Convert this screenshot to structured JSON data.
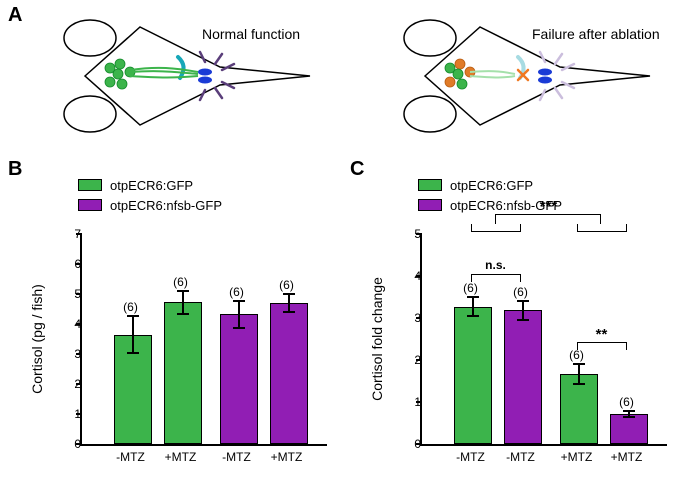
{
  "colors": {
    "green": "#3cb44b",
    "purple": "#911eb4",
    "axis": "#000000",
    "bg": "#ffffff"
  },
  "panelA": {
    "label": "A",
    "left_caption": "Normal function",
    "right_caption": "Failure after ablation"
  },
  "legend": {
    "item1": "otpECR6:GFP",
    "item2": "otpECR6:nfsb-GFP"
  },
  "panelB": {
    "label": "B",
    "ylabel": "Cortisol (pg / fish)",
    "ylim": [
      0,
      7
    ],
    "ytick_step": 1,
    "bars": [
      {
        "x": "-MTZ",
        "value": 3.65,
        "err": 0.62,
        "n": "(6)",
        "group": "green"
      },
      {
        "x": "+MTZ",
        "value": 4.72,
        "err": 0.38,
        "n": "(6)",
        "group": "green"
      },
      {
        "x": "-MTZ",
        "value": 4.33,
        "err": 0.45,
        "n": "(6)",
        "group": "purple"
      },
      {
        "x": "+MTZ",
        "value": 4.7,
        "err": 0.3,
        "n": "(6)",
        "group": "purple"
      }
    ]
  },
  "panelC": {
    "label": "C",
    "ylabel": "Cortisol fold change",
    "ylim": [
      0,
      5
    ],
    "ytick_step": 1,
    "bars": [
      {
        "x": "-MTZ",
        "value": 3.27,
        "err": 0.22,
        "n": "(6)",
        "group": "green"
      },
      {
        "x": "-MTZ",
        "value": 3.18,
        "err": 0.22,
        "n": "(6)",
        "group": "purple"
      },
      {
        "x": "+MTZ",
        "value": 1.66,
        "err": 0.24,
        "n": "(6)",
        "group": "green"
      },
      {
        "x": "+MTZ",
        "value": 0.72,
        "err": 0.07,
        "n": "(6)",
        "group": "purple"
      }
    ],
    "sig": {
      "overall": "***",
      "pair12": "n.s.",
      "pair34": "**"
    }
  }
}
